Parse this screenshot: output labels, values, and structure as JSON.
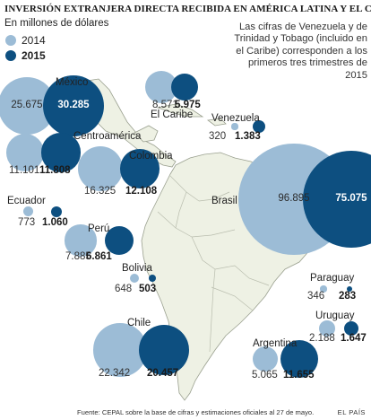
{
  "title": "INVERSIÓN EXTRANJERA DIRECTA RECIBIDA EN AMÉRICA LATINA Y EL CARIBE",
  "subtitle": "En millones de dólares",
  "legend": [
    {
      "label": "2014",
      "color": "#9cbcd6"
    },
    {
      "label": "2015",
      "color": "#0d4f80"
    }
  ],
  "note": "Las cifras de Venezuela y de Trinidad y Tobago (incluido en el Caribe) corresponden a los primeros tres trimestres de 2015",
  "source": "Fuente:  CEPAL sobre la base de cifras y estimaciones oficiales al 27 de mayo.",
  "brand": "EL PAÍS",
  "colors": {
    "y2014": "#9cbcd6",
    "y2015": "#0d4f80",
    "land": "#eef1e4",
    "land_outline": "#9aa08f",
    "borders": "#b9bdae"
  },
  "countries": [
    {
      "key": "mexico",
      "name": "México",
      "v2014": 25675,
      "v2015": 30285,
      "t2014": "25.675",
      "t2015": "30.285"
    },
    {
      "key": "caribe",
      "name": "El Caribe",
      "v2014": 8571,
      "v2015": 5975,
      "t2014": "8.571",
      "t2015": "5.975"
    },
    {
      "key": "venezuela",
      "name": "Venezuela",
      "v2014": 320,
      "v2015": 1383,
      "t2014": "320",
      "t2015": "1.383"
    },
    {
      "key": "centroamerica",
      "name": "Centroamérica",
      "v2014": 11101,
      "v2015": 11808,
      "t2014": "11.101",
      "t2015": "11.808"
    },
    {
      "key": "colombia",
      "name": "Colombia",
      "v2014": 16325,
      "v2015": 12108,
      "t2014": "16.325",
      "t2015": "12.108"
    },
    {
      "key": "brasil",
      "name": "Brasil",
      "v2014": 96895,
      "v2015": 75075,
      "t2014": "96.895",
      "t2015": "75.075"
    },
    {
      "key": "ecuador",
      "name": "Ecuador",
      "v2014": 773,
      "v2015": 1060,
      "t2014": "773",
      "t2015": "1.060"
    },
    {
      "key": "peru",
      "name": "Perú",
      "v2014": 7885,
      "v2015": 6861,
      "t2014": "7.885",
      "t2015": "6.861"
    },
    {
      "key": "bolivia",
      "name": "Bolivia",
      "v2014": 648,
      "v2015": 503,
      "t2014": "648",
      "t2015": "503"
    },
    {
      "key": "paraguay",
      "name": "Paraguay",
      "v2014": 346,
      "v2015": 283,
      "t2014": "346",
      "t2015": "283"
    },
    {
      "key": "uruguay",
      "name": "Uruguay",
      "v2014": 2188,
      "v2015": 1647,
      "t2014": "2.188",
      "t2015": "1.647"
    },
    {
      "key": "argentina",
      "name": "Argentina",
      "v2014": 5065,
      "v2015": 11655,
      "t2014": "5.065",
      "t2015": "11.655"
    },
    {
      "key": "chile",
      "name": "Chile",
      "v2014": 22342,
      "v2015": 20457,
      "t2014": "22.342",
      "t2015": "20.457"
    }
  ]
}
